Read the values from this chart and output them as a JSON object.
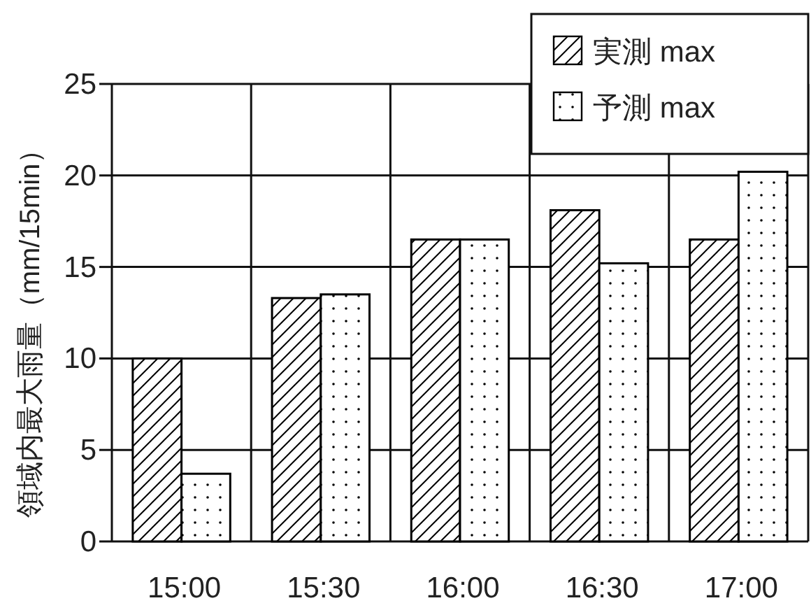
{
  "chart_data": {
    "type": "bar",
    "ylabel": "領域内最大雨量（mm/15min）",
    "categories": [
      "15:00",
      "15:30",
      "16:00",
      "16:30",
      "17:00"
    ],
    "series": [
      {
        "name": "実測 max",
        "color": "#000000",
        "values": [
          10.0,
          13.3,
          16.5,
          18.1,
          16.5
        ]
      },
      {
        "name": "予測 max",
        "color": "#000000",
        "values": [
          3.7,
          13.5,
          16.5,
          15.2,
          20.2
        ]
      }
    ],
    "ylim": [
      0,
      25
    ],
    "yticks": [
      0,
      5,
      10,
      15,
      20,
      25
    ],
    "grid": true,
    "legend": "top right"
  }
}
